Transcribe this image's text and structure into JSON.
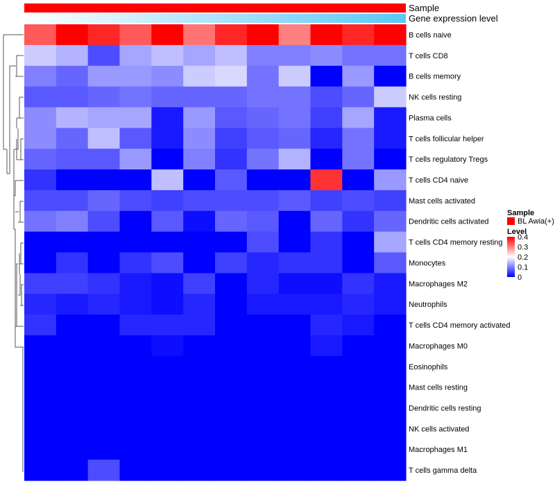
{
  "chart_data": {
    "type": "heatmap",
    "title": "",
    "annotation_tracks": [
      {
        "name": "Sample",
        "fill": "#ff0000"
      },
      {
        "name": "Gene expression level",
        "gradient": [
          "#ffffff",
          "#5bc8f5"
        ]
      }
    ],
    "rows": [
      "B cells naive",
      "T cells CD8",
      "B cells memory",
      "NK cells resting",
      "Plasma cells",
      "T cells follicular helper",
      "T cells regulatory  Tregs",
      "T cells CD4 naive",
      "Mast cells activated",
      "Dendritic cells activated",
      "T cells CD4 memory resting",
      "Monocytes",
      "Macrophages M2",
      "Neutrophils",
      "T cells CD4 memory activated",
      "Macrophages M0",
      "Eosinophils",
      "Mast cells resting",
      "Dendritic cells resting",
      "NK cells activated",
      "Macrophages M1",
      "T cells gamma delta"
    ],
    "n_columns": 12,
    "values": [
      [
        0.33,
        0.4,
        0.37,
        0.33,
        0.42,
        0.31,
        0.37,
        0.42,
        0.3,
        0.4,
        0.37,
        0.42
      ],
      [
        0.16,
        0.14,
        0.06,
        0.13,
        0.15,
        0.13,
        0.15,
        0.1,
        0.1,
        0.11,
        0.09,
        0.09
      ],
      [
        0.1,
        0.08,
        0.12,
        0.12,
        0.11,
        0.16,
        0.17,
        0.09,
        0.16,
        0.0,
        0.12,
        0.0
      ],
      [
        0.07,
        0.07,
        0.08,
        0.09,
        0.08,
        0.08,
        0.08,
        0.09,
        0.09,
        0.06,
        0.08,
        0.16
      ],
      [
        0.11,
        0.14,
        0.13,
        0.13,
        0.02,
        0.12,
        0.07,
        0.08,
        0.09,
        0.05,
        0.13,
        0.02
      ],
      [
        0.11,
        0.08,
        0.15,
        0.07,
        0.02,
        0.11,
        0.05,
        0.07,
        0.08,
        0.03,
        0.09,
        0.02
      ],
      [
        0.08,
        0.07,
        0.07,
        0.12,
        0.0,
        0.1,
        0.04,
        0.09,
        0.14,
        0.0,
        0.09,
        0.0
      ],
      [
        0.04,
        0.0,
        0.0,
        0.0,
        0.15,
        0.0,
        0.07,
        0.0,
        0.0,
        0.36,
        0.0,
        0.12
      ],
      [
        0.06,
        0.06,
        0.08,
        0.06,
        0.05,
        0.06,
        0.06,
        0.06,
        0.07,
        0.05,
        0.06,
        0.05
      ],
      [
        0.09,
        0.1,
        0.06,
        0.0,
        0.07,
        0.01,
        0.08,
        0.07,
        0.0,
        0.08,
        0.04,
        0.08
      ],
      [
        0.0,
        0.0,
        0.0,
        0.0,
        0.0,
        0.0,
        0.0,
        0.06,
        0.0,
        0.04,
        0.0,
        0.13
      ],
      [
        0.0,
        0.04,
        0.0,
        0.04,
        0.06,
        0.0,
        0.05,
        0.03,
        0.04,
        0.04,
        0.0,
        0.07
      ],
      [
        0.05,
        0.05,
        0.04,
        0.02,
        0.01,
        0.05,
        0.0,
        0.03,
        0.01,
        0.01,
        0.04,
        0.02
      ],
      [
        0.03,
        0.02,
        0.03,
        0.02,
        0.01,
        0.03,
        0.0,
        0.02,
        0.02,
        0.02,
        0.03,
        0.02
      ],
      [
        0.04,
        0.0,
        0.0,
        0.03,
        0.03,
        0.03,
        0.0,
        0.0,
        0.0,
        0.03,
        0.02,
        0.0
      ],
      [
        0.0,
        0.0,
        0.0,
        0.0,
        0.01,
        0.0,
        0.0,
        0.0,
        0.0,
        0.02,
        0.0,
        0.0
      ],
      [
        0.0,
        0.0,
        0.0,
        0.0,
        0.0,
        0.0,
        0.0,
        0.0,
        0.0,
        0.0,
        0.0,
        0.0
      ],
      [
        0.0,
        0.0,
        0.0,
        0.0,
        0.0,
        0.0,
        0.0,
        0.0,
        0.0,
        0.0,
        0.0,
        0.0
      ],
      [
        0.0,
        0.0,
        0.0,
        0.0,
        0.0,
        0.0,
        0.0,
        0.0,
        0.0,
        0.0,
        0.0,
        0.0
      ],
      [
        0.0,
        0.0,
        0.0,
        0.0,
        0.0,
        0.0,
        0.0,
        0.0,
        0.0,
        0.0,
        0.0,
        0.0
      ],
      [
        0.0,
        0.0,
        0.0,
        0.0,
        0.0,
        0.0,
        0.0,
        0.0,
        0.0,
        0.0,
        0.0,
        0.0
      ],
      [
        0.0,
        0.0,
        0.06,
        0.0,
        0.0,
        0.0,
        0.0,
        0.0,
        0.0,
        0.0,
        0.0,
        0.0
      ]
    ],
    "color_scale": {
      "domain": [
        0,
        0.2,
        0.4
      ],
      "colors": [
        "#0000ff",
        "#ffffff",
        "#ff0000"
      ]
    },
    "legend": {
      "sample_title": "Sample",
      "sample_entry": "BL Awia(+)",
      "sample_color": "#ff0000",
      "level_title": "Level",
      "ticks": [
        "0.4",
        "0.3",
        "0.2",
        "0.1",
        "0"
      ],
      "tick_values": [
        0.4,
        0.3,
        0.2,
        0.1,
        0
      ],
      "range": [
        0,
        0.4
      ]
    },
    "dendrogram": "rows-left"
  }
}
